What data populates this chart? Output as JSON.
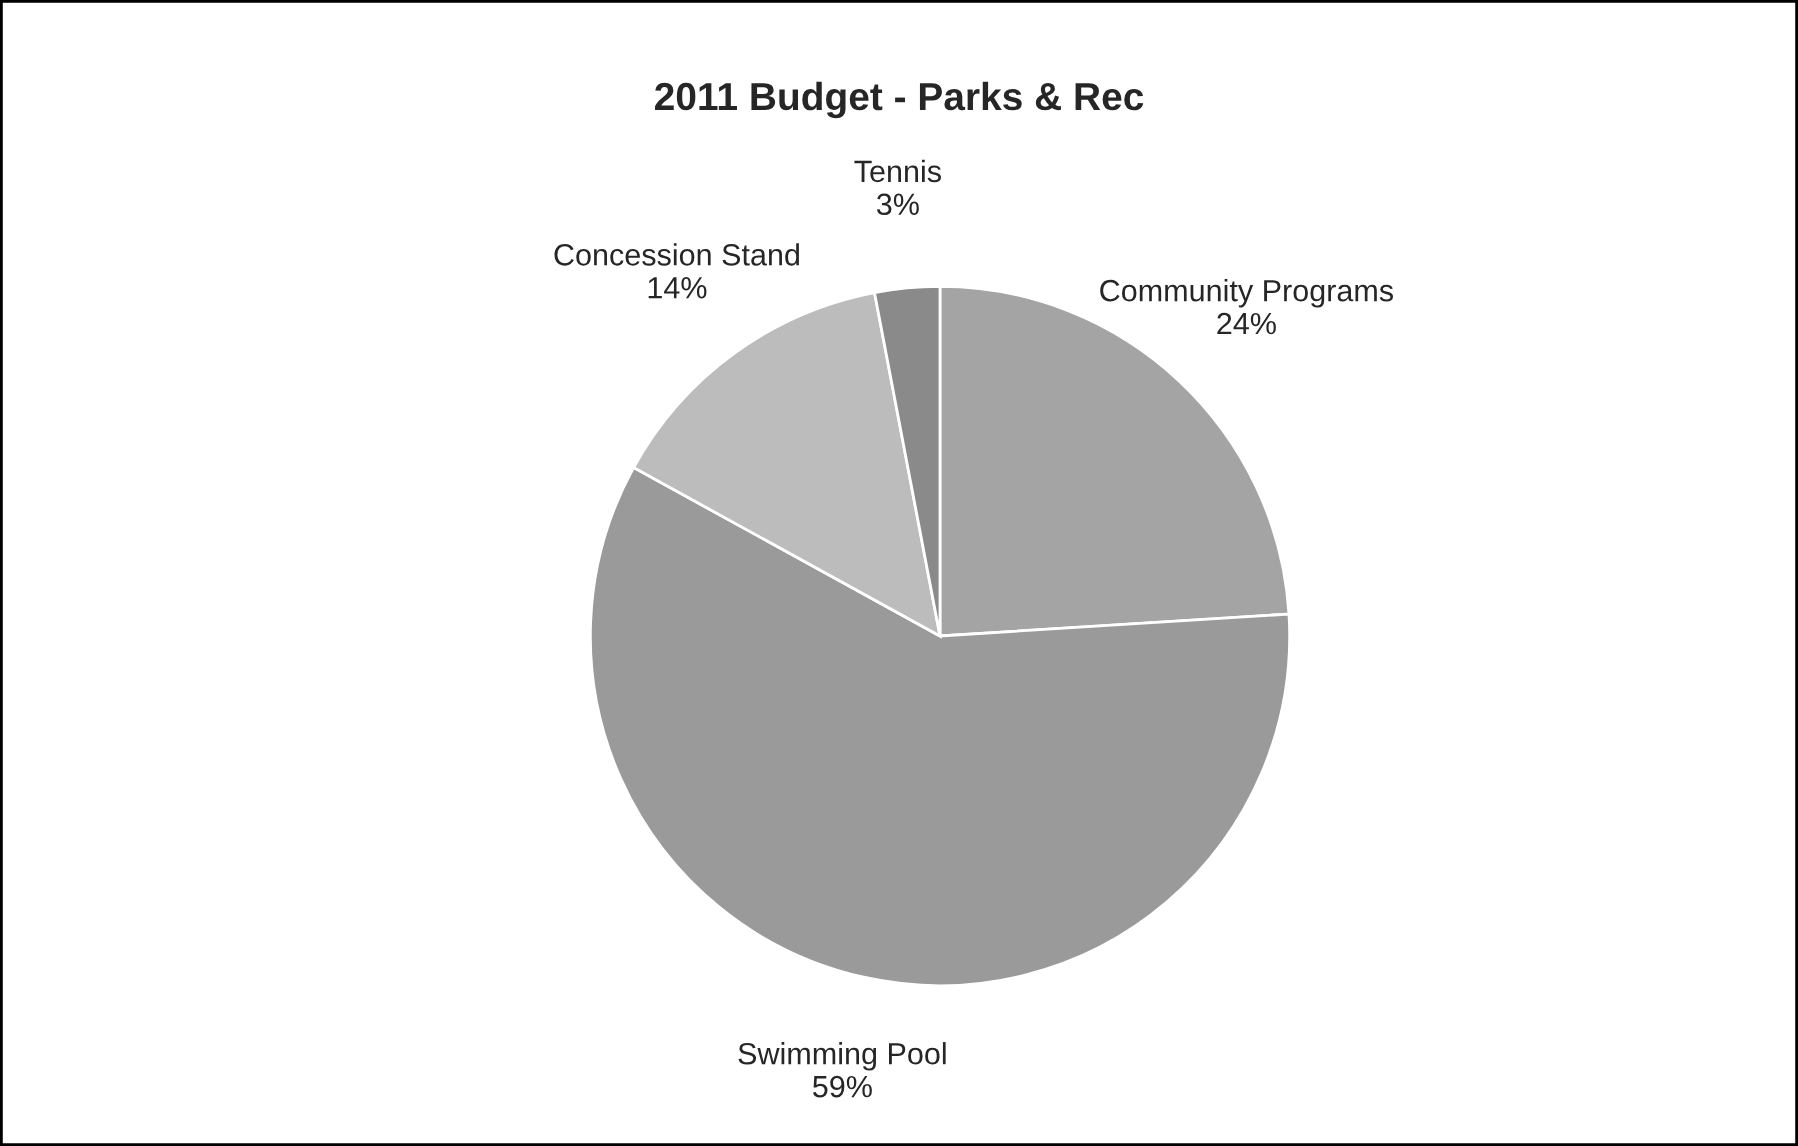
{
  "chart_data": {
    "type": "pie",
    "title": "2011 Budget - Parks & Rec",
    "categories": [
      "Community Programs",
      "Swimming Pool",
      "Concession Stand",
      "Tennis"
    ],
    "values": [
      24,
      59,
      14,
      3
    ],
    "value_labels": [
      "24%",
      "59%",
      "14%",
      "3%"
    ],
    "colors": [
      "#a4a4a4",
      "#9a9a9a",
      "#bcbcbc",
      "#8a8a8a"
    ]
  }
}
